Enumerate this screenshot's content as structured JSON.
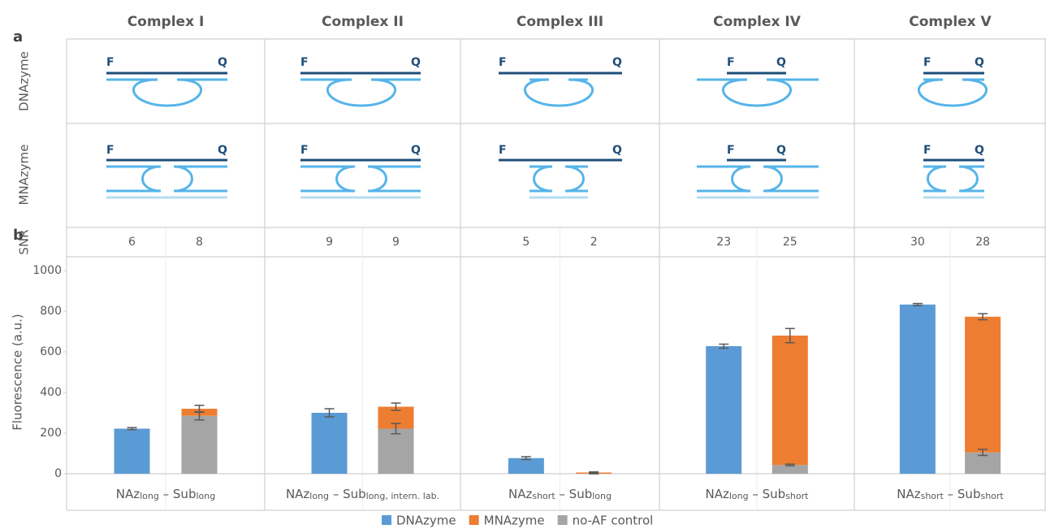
{
  "panels": {
    "a": "a",
    "b": "b"
  },
  "schematic": {
    "rows": [
      "DNAzyme",
      "MNAzyme"
    ],
    "fluorophore": "F",
    "quencher": "Q"
  },
  "chart_data": {
    "type": "bar",
    "columns": [
      "Complex I",
      "Complex II",
      "Complex III",
      "Complex IV",
      "Complex V"
    ],
    "categories": [
      [
        "NAz",
        "long",
        " – Sub",
        "long"
      ],
      [
        "NAz",
        "long",
        " – Sub",
        "long, intern. lab."
      ],
      [
        "NAz",
        "short",
        " – Sub",
        "long"
      ],
      [
        "NAz",
        "long",
        " – Sub",
        "short"
      ],
      [
        "NAz",
        "short",
        " – Sub",
        "short"
      ]
    ],
    "y_label": "Fluorescence (a.u.)",
    "ylim": [
      0,
      1000
    ],
    "yticks": [
      0,
      200,
      400,
      600,
      800,
      1000
    ],
    "grid": false,
    "series": [
      {
        "name": "DNAzyme",
        "color": "#5b9bd5",
        "values": [
          222,
          300,
          77,
          628,
          833
        ],
        "errors": [
          5,
          20,
          7,
          10,
          5
        ]
      },
      {
        "name": "MNAzyme",
        "color": "#ed7d31",
        "values": [
          35,
          108,
          6,
          637,
          668
        ],
        "errors": [
          17,
          18,
          3,
          35,
          15
        ]
      },
      {
        "name": "no-AF control",
        "color": "#a5a5a5",
        "values": [
          285,
          222,
          0,
          43,
          105
        ],
        "errors": [
          20,
          25,
          0,
          4,
          15
        ]
      }
    ],
    "snr": {
      "label": "SNR",
      "dnazyme": [
        6,
        9,
        5,
        23,
        30
      ],
      "mnazyme": [
        8,
        9,
        2,
        25,
        28
      ]
    },
    "legend": "bottom"
  }
}
